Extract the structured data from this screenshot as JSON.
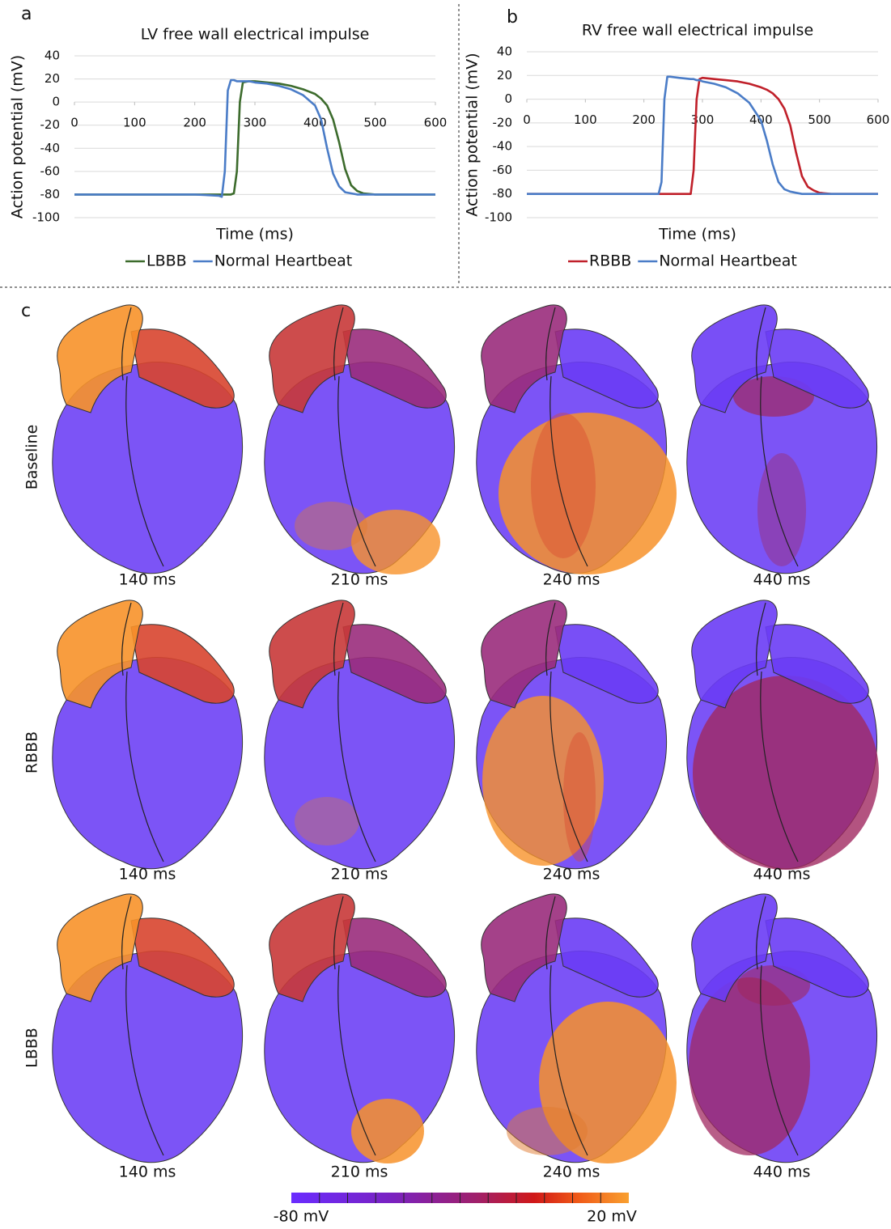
{
  "chart_data": [
    {
      "type": "line",
      "panel": "a",
      "title": "LV free wall electrical impulse",
      "x_label": "Time (ms)",
      "y_label": "Action potential (mV)",
      "xlim": [
        0,
        600
      ],
      "xticks": [
        0,
        100,
        200,
        300,
        400,
        500,
        600
      ],
      "ylim": [
        -100,
        40
      ],
      "yticks": [
        -100,
        -80,
        -60,
        -40,
        -20,
        0,
        20,
        40
      ],
      "grid": true,
      "legend": "bottom",
      "x": [
        0,
        200,
        240,
        245,
        250,
        255,
        260,
        265,
        270,
        275,
        280,
        290,
        300,
        320,
        340,
        360,
        380,
        400,
        410,
        420,
        430,
        440,
        450,
        460,
        470,
        480,
        500,
        600
      ],
      "series": [
        {
          "name": "LBBB",
          "color": "#3c6b2c",
          "values": [
            -80,
            -80,
            -80,
            -80,
            -80,
            -80,
            -80,
            -79,
            -60,
            0,
            17,
            18,
            18,
            17,
            16,
            14,
            11,
            7,
            3,
            -3,
            -15,
            -35,
            -58,
            -72,
            -77,
            -79,
            -80,
            -80
          ]
        },
        {
          "name": "Normal Heartbeat",
          "color": "#4a7cc7",
          "values": [
            -80,
            -80,
            -81,
            -82,
            -60,
            10,
            19,
            19,
            18,
            18,
            18,
            18,
            17,
            16,
            14,
            11,
            6,
            -3,
            -15,
            -40,
            -62,
            -73,
            -78,
            -79,
            -80,
            -80,
            -80,
            -80
          ]
        }
      ]
    },
    {
      "type": "line",
      "panel": "b",
      "title": "RV free wall electrical impulse",
      "x_label": "Time (ms)",
      "y_label": "Action potential (mV)",
      "xlim": [
        0,
        600
      ],
      "xticks": [
        0,
        100,
        200,
        300,
        400,
        500,
        600
      ],
      "ylim": [
        -100,
        40
      ],
      "yticks": [
        -100,
        -80,
        -60,
        -40,
        -20,
        0,
        20,
        40
      ],
      "grid": true,
      "legend": "bottom",
      "x": [
        0,
        200,
        225,
        230,
        235,
        240,
        245,
        260,
        280,
        285,
        290,
        295,
        300,
        320,
        340,
        360,
        380,
        400,
        410,
        420,
        430,
        440,
        450,
        460,
        470,
        480,
        490,
        500,
        520,
        600
      ],
      "series": [
        {
          "name": "RBBB",
          "color": "#c0202a",
          "values": [
            -80,
            -80,
            -80,
            -80,
            -80,
            -80,
            -80,
            -80,
            -80,
            -60,
            0,
            17,
            18,
            17,
            16,
            15,
            13,
            10,
            8,
            5,
            0,
            -8,
            -22,
            -45,
            -65,
            -74,
            -77,
            -79,
            -80,
            -80
          ]
        },
        {
          "name": "Normal Heartbeat",
          "color": "#4a7cc7",
          "values": [
            -80,
            -80,
            -80,
            -70,
            0,
            19,
            19,
            18,
            17,
            17,
            16,
            16,
            15,
            13,
            10,
            5,
            -3,
            -18,
            -35,
            -55,
            -70,
            -76,
            -78,
            -79,
            -80,
            -80,
            -80,
            -80,
            -80,
            -80
          ]
        }
      ]
    }
  ],
  "panel_c": {
    "label": "c",
    "rows": [
      {
        "label": "Baseline",
        "times": [
          "140 ms",
          "210 ms",
          "240 ms",
          "440 ms"
        ]
      },
      {
        "label": "RBBB",
        "times": [
          "140 ms",
          "210 ms",
          "240 ms",
          "440 ms"
        ]
      },
      {
        "label": "LBBB",
        "times": [
          "140 ms",
          "210 ms",
          "240 ms",
          "440 ms"
        ]
      }
    ],
    "colorbar": {
      "min_label": "-80 mV",
      "max_label": "20 mV"
    }
  }
}
